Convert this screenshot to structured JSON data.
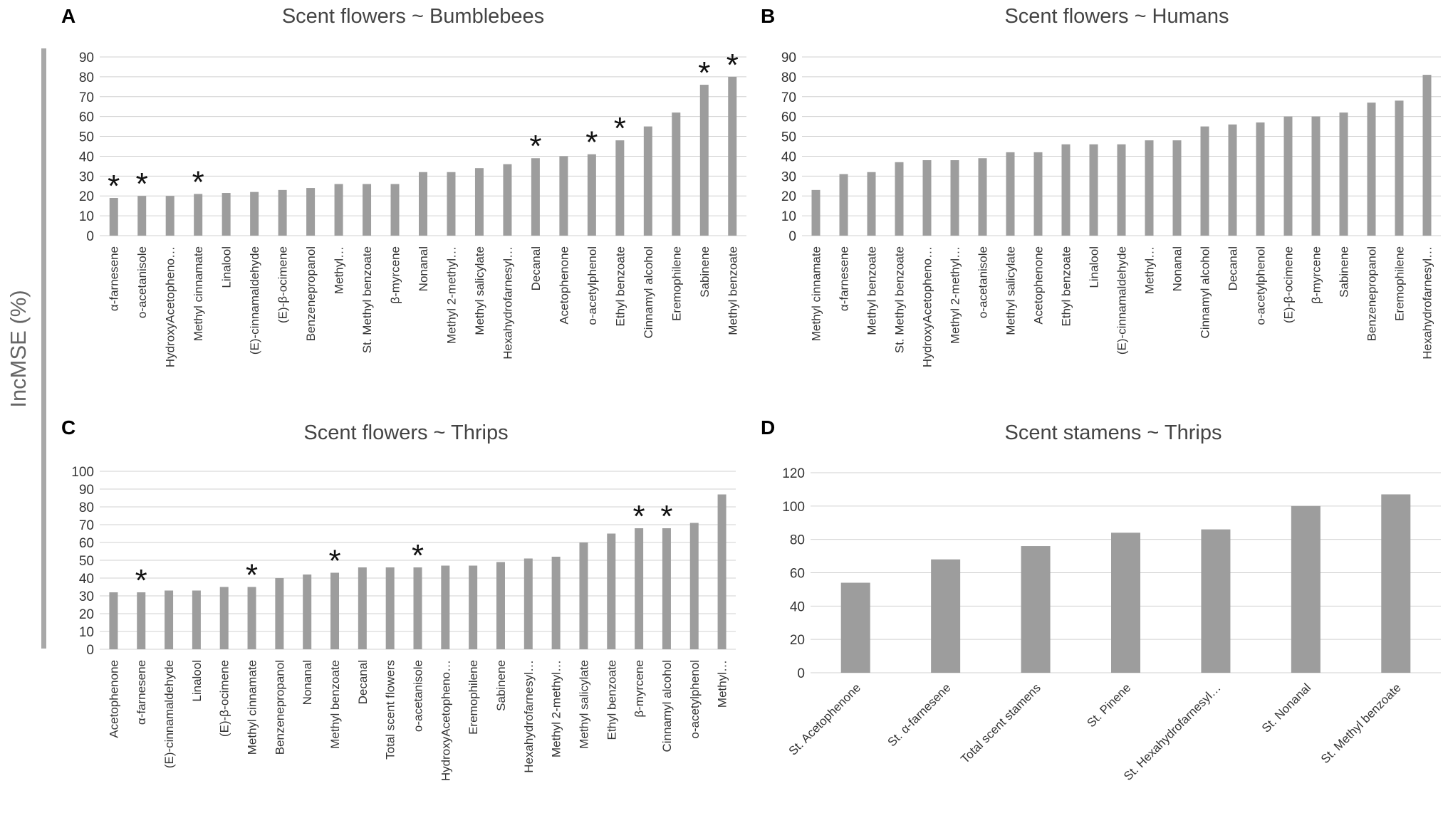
{
  "ylabel": "IncMSE (%)",
  "chart_data": [
    {
      "panel": "A",
      "type": "bar",
      "title": "Scent flowers ~ Bumblebees",
      "ylim": [
        0,
        90
      ],
      "yticks": [
        0,
        10,
        20,
        30,
        40,
        50,
        60,
        70,
        80,
        90
      ],
      "categories": [
        "α-farnesene",
        "o-acetanisole",
        "HydroxyAcetopheno…",
        "Methyl cinnamate",
        "Linalool",
        "(E)-cinnamaldehyde",
        "(E)-β-ocimene",
        "Benzenepropanol",
        "Methyl…",
        "St. Methyl benzoate",
        "β-myrcene",
        "Nonanal",
        "Methyl 2-methyl…",
        "Methyl salicylate",
        "Hexahydrofarnesyl…",
        "Decanal",
        "Acetophenone",
        "o-acetylphenol",
        "Ethyl benzoate",
        "Cinnamyl alcohol",
        "Eremophilene",
        "Sabinene",
        "Methyl benzoate"
      ],
      "values": [
        19,
        20,
        20,
        21,
        21.5,
        22,
        23,
        24,
        26,
        26,
        26,
        32,
        32,
        34,
        36,
        39,
        40,
        41,
        48,
        55,
        62,
        76,
        80
      ],
      "significant": [
        true,
        true,
        false,
        true,
        false,
        false,
        false,
        false,
        false,
        false,
        false,
        false,
        false,
        false,
        false,
        true,
        false,
        true,
        true,
        false,
        false,
        true,
        true
      ]
    },
    {
      "panel": "B",
      "type": "bar",
      "title": "Scent flowers ~ Humans",
      "ylim": [
        0,
        90
      ],
      "yticks": [
        0,
        10,
        20,
        30,
        40,
        50,
        60,
        70,
        80,
        90
      ],
      "categories": [
        "Methyl cinnamate",
        "α-farnesene",
        "Methyl benzoate",
        "St. Methyl benzoate",
        "HydroxyAcetopheno…",
        "Methyl 2-methyl…",
        "o-acetanisole",
        "Methyl salicylate",
        "Acetophenone",
        "Ethyl benzoate",
        "Linalool",
        "(E)-cinnamaldehyde",
        "Methyl…",
        "Nonanal",
        "Cinnamyl alcohol",
        "Decanal",
        "o-acetylphenol",
        "(E)-β-ocimene",
        "β-myrcene",
        "Sabinene",
        "Benzenepropanol",
        "Eremophilene",
        "Hexahydrofarnesyl…"
      ],
      "values": [
        23,
        31,
        32,
        37,
        38,
        38,
        39,
        42,
        42,
        46,
        46,
        46,
        48,
        48,
        55,
        56,
        57,
        60,
        60,
        62,
        67,
        68,
        81
      ],
      "significant": [
        false,
        false,
        false,
        false,
        false,
        false,
        false,
        false,
        false,
        false,
        false,
        false,
        false,
        false,
        false,
        false,
        false,
        false,
        false,
        false,
        false,
        false,
        false
      ]
    },
    {
      "panel": "C",
      "type": "bar",
      "title": "Scent flowers ~ Thrips",
      "ylim": [
        0,
        100
      ],
      "yticks": [
        0,
        10,
        20,
        30,
        40,
        50,
        60,
        70,
        80,
        90,
        100
      ],
      "categories": [
        "Acetophenone",
        "α-farnesene",
        "(E)-cinnamaldehyde",
        "Linalool",
        "(E)-β-ocimene",
        "Methyl cinnamate",
        "Benzenepropanol",
        "Nonanal",
        "Methyl benzoate",
        "Decanal",
        "Total scent flowers",
        "o-acetanisole",
        "HydroxyAcetopheno…",
        "Eremophilene",
        "Sabinene",
        "Hexahydrofarnesyl…",
        "Methyl 2-methyl…",
        "Methyl salicylate",
        "Ethyl benzoate",
        "β-myrcene",
        "Cinnamyl alcohol",
        "o-acetylphenol",
        "Methyl…"
      ],
      "values": [
        32,
        32,
        33,
        33,
        35,
        35,
        40,
        42,
        43,
        46,
        46,
        46,
        47,
        47,
        49,
        51,
        52,
        60,
        65,
        68,
        68,
        71,
        87
      ],
      "significant": [
        false,
        true,
        false,
        false,
        false,
        true,
        false,
        false,
        true,
        false,
        false,
        true,
        false,
        false,
        false,
        false,
        false,
        false,
        false,
        true,
        true,
        false,
        false
      ]
    },
    {
      "panel": "D",
      "type": "bar",
      "title": "Scent stamens ~ Thrips",
      "ylim": [
        0,
        120
      ],
      "yticks": [
        0,
        20,
        40,
        60,
        80,
        100,
        120
      ],
      "categories": [
        "St. Acetophenone",
        "St. α-farnesene",
        "Total scent stamens",
        "St. Pinene",
        "St. Hexahydrofarnesyl…",
        "St. Nonanal",
        "St. Methyl benzoate"
      ],
      "values": [
        54,
        68,
        76,
        84,
        86,
        100,
        107
      ],
      "significant": [
        false,
        false,
        false,
        false,
        false,
        false,
        false
      ]
    }
  ]
}
